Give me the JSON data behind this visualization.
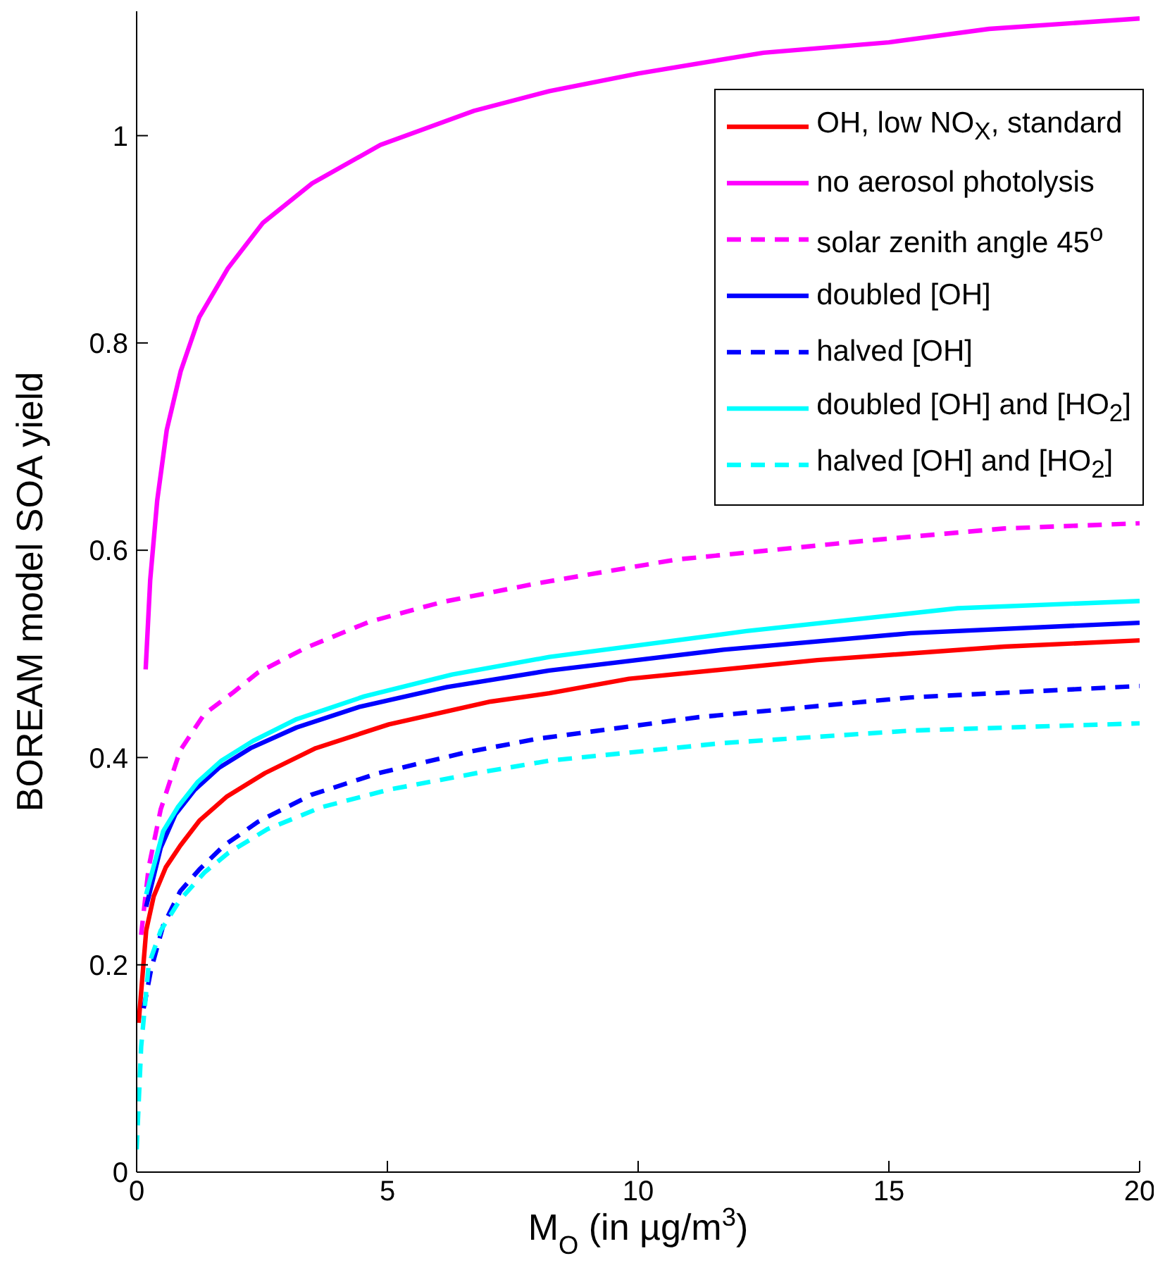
{
  "chart_data": {
    "type": "line",
    "xlabel": "M$_{O}$ (in µg/m$^{3}$)",
    "ylabel": "BOREAM model SOA yield",
    "xlim": [
      0,
      20
    ],
    "xticks": [
      0,
      5,
      10,
      15,
      20
    ],
    "ylim": [
      0,
      1.12
    ],
    "yticks": [
      0,
      0.2,
      0.4,
      0.6,
      0.8,
      1
    ],
    "legend": "top right",
    "series": [
      {
        "name": "OH, low NO$_{X}$, standard",
        "color": "#ff0000",
        "line_style": "solid",
        "x": [
          0.04,
          0.19,
          0.34,
          0.58,
          0.87,
          1.25,
          1.79,
          2.56,
          3.57,
          5.03,
          7.06,
          8.23,
          9.82,
          13.57,
          17.3,
          20
        ],
        "values": [
          0.144,
          0.233,
          0.266,
          0.294,
          0.315,
          0.339,
          0.362,
          0.385,
          0.409,
          0.432,
          0.454,
          0.462,
          0.476,
          0.494,
          0.507,
          0.513
        ]
      },
      {
        "name": "no aerosol photolysis",
        "color": "#ff00ff",
        "line_style": "solid",
        "x": [
          0.18,
          0.27,
          0.41,
          0.6,
          0.88,
          1.25,
          1.82,
          2.52,
          3.5,
          4.86,
          6.73,
          8.23,
          10,
          12.5,
          15,
          17,
          20
        ],
        "values": [
          0.485,
          0.571,
          0.648,
          0.716,
          0.773,
          0.825,
          0.872,
          0.916,
          0.954,
          0.991,
          1.024,
          1.043,
          1.06,
          1.08,
          1.09,
          1.103,
          1.113
        ]
      },
      {
        "name": "solar zenith angle 45$^{o}$",
        "color": "#ff00ff",
        "line_style": "dashed",
        "x": [
          0.09,
          0.24,
          0.48,
          0.87,
          1.35,
          1.93,
          2.42,
          3.38,
          4.64,
          6.09,
          7.98,
          10.76,
          14.5,
          17.3,
          20
        ],
        "values": [
          0.229,
          0.294,
          0.35,
          0.407,
          0.442,
          0.463,
          0.482,
          0.506,
          0.531,
          0.55,
          0.568,
          0.591,
          0.609,
          0.621,
          0.626
        ]
      },
      {
        "name": "doubled [OH]",
        "color": "#0000ff",
        "line_style": "solid",
        "x": [
          0.19,
          0.48,
          0.77,
          1.16,
          1.64,
          2.27,
          3.19,
          4.45,
          6.19,
          8.23,
          11.7,
          15.44,
          20
        ],
        "values": [
          0.256,
          0.313,
          0.345,
          0.369,
          0.39,
          0.409,
          0.429,
          0.449,
          0.468,
          0.484,
          0.504,
          0.52,
          0.53
        ]
      },
      {
        "name": "halved [OH]",
        "color": "#0000ff",
        "line_style": "dashed",
        "x": [
          0.14,
          0.29,
          0.53,
          0.87,
          1.25,
          1.74,
          2.42,
          3.48,
          4.83,
          6.57,
          7.98,
          11.22,
          15.44,
          20
        ],
        "values": [
          0.158,
          0.196,
          0.238,
          0.271,
          0.292,
          0.315,
          0.338,
          0.364,
          0.385,
          0.405,
          0.418,
          0.439,
          0.458,
          0.469
        ]
      },
      {
        "name": "doubled [OH] and [HO$_{2}$]",
        "color": "#00ffff",
        "line_style": "solid",
        "x": [
          0.19,
          0.53,
          0.82,
          1.21,
          1.69,
          2.32,
          3.19,
          4.54,
          6.29,
          8.23,
          12.16,
          16.37,
          20
        ],
        "values": [
          0.268,
          0.329,
          0.352,
          0.376,
          0.397,
          0.416,
          0.437,
          0.459,
          0.48,
          0.497,
          0.522,
          0.544,
          0.551
        ]
      },
      {
        "name": "halved [OH] and [HO$_{2}$]",
        "color": "#00ffff",
        "line_style": "dashed",
        "x": [
          0,
          0.09,
          0.24,
          0.48,
          0.87,
          1.35,
          1.83,
          2.61,
          3.68,
          5.03,
          6.78,
          8.23,
          11.7,
          15.44,
          20
        ],
        "values": [
          0.022,
          0.121,
          0.2,
          0.233,
          0.263,
          0.289,
          0.308,
          0.331,
          0.352,
          0.369,
          0.385,
          0.397,
          0.414,
          0.426,
          0.433
        ]
      }
    ]
  }
}
